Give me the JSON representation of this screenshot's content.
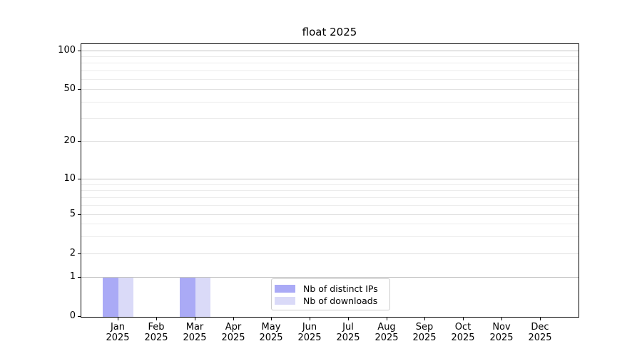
{
  "figure": {
    "background": "#ffffff",
    "axes_edge_color": "#000000",
    "grid_major_color": "#c3c3c3",
    "grid_mid_color": "#dfdfdf",
    "grid_minor_color": "#ececec"
  },
  "chart_data": {
    "type": "bar",
    "title": "float 2025",
    "xlabel": "",
    "ylabel": "",
    "categories": [
      "Jan 2025",
      "Feb 2025",
      "Mar 2025",
      "Apr 2025",
      "May 2025",
      "Jun 2025",
      "Jul 2025",
      "Aug 2025",
      "Sep 2025",
      "Oct 2025",
      "Nov 2025",
      "Dec 2025"
    ],
    "series": [
      {
        "name": "Nb of distinct IPs",
        "color": "#aaaaf6",
        "values": [
          1,
          0,
          1,
          0,
          0,
          0,
          0,
          0,
          0,
          0,
          0,
          0
        ]
      },
      {
        "name": "Nb of downloads",
        "color": "#dadaf8",
        "values": [
          1,
          0,
          1,
          0,
          0,
          0,
          0,
          0,
          0,
          0,
          0,
          0
        ]
      }
    ],
    "yscale": "log-like (0 baseline shown)",
    "yticks": [
      0,
      1,
      2,
      5,
      10,
      20,
      50,
      100
    ],
    "ylim": [
      0,
      115
    ],
    "grid": "both (major + log minor horizontal lines)",
    "legend": {
      "position": "lower center, inside axes",
      "entries": [
        "Nb of distinct IPs",
        "Nb of downloads"
      ]
    }
  }
}
